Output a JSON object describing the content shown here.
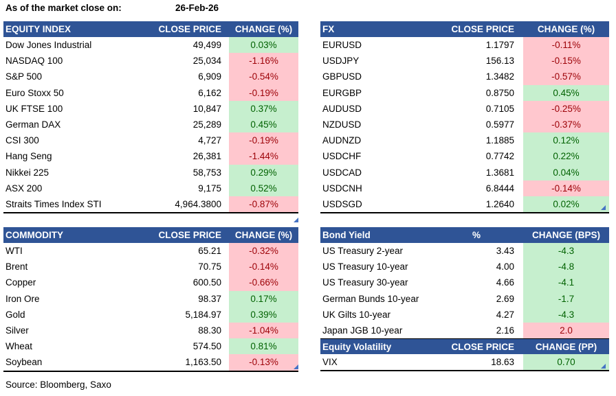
{
  "title_bar": {
    "label": "As of the market close on:",
    "date": "26-Feb-26"
  },
  "footer": {
    "source": "Source: Bloomberg, Saxo"
  },
  "colors": {
    "header_bg": "#2F5496",
    "header_text": "#FFFFFF",
    "positive_bg": "#C6EFCE",
    "positive_text": "#006100",
    "negative_bg": "#FFC7CE",
    "negative_text": "#9C0006",
    "handle": "#4472C4",
    "border": "#000000"
  },
  "tables": {
    "equity": {
      "title": "EQUITY INDEX",
      "col_price": "CLOSE PRICE",
      "col_change": "CHANGE (%)",
      "rows": [
        {
          "name": "Dow Jones Industrial",
          "value": "49,499",
          "change": "0.03%",
          "tone": "green"
        },
        {
          "name": "NASDAQ 100",
          "value": "25,034",
          "change": "-1.16%",
          "tone": "red"
        },
        {
          "name": "S&P 500",
          "value": "6,909",
          "change": "-0.54%",
          "tone": "red"
        },
        {
          "name": "Euro Stoxx 50",
          "value": "6,162",
          "change": "-0.19%",
          "tone": "red"
        },
        {
          "name": "UK FTSE 100",
          "value": "10,847",
          "change": "0.37%",
          "tone": "green"
        },
        {
          "name": "German DAX",
          "value": "25,289",
          "change": "0.45%",
          "tone": "green"
        },
        {
          "name": "CSI 300",
          "value": "4,727",
          "change": "-0.19%",
          "tone": "red"
        },
        {
          "name": "Hang Seng",
          "value": "26,381",
          "change": "-1.44%",
          "tone": "red"
        },
        {
          "name": "Nikkei 225",
          "value": "58,753",
          "change": "0.29%",
          "tone": "green"
        },
        {
          "name": "ASX 200",
          "value": "9,175",
          "change": "0.52%",
          "tone": "green"
        },
        {
          "name": "Straits Times Index STI",
          "value": "4,964.3800",
          "change": "-0.87%",
          "tone": "red"
        }
      ]
    },
    "fx": {
      "title": "FX",
      "col_price": "CLOSE PRICE",
      "col_change": "CHANGE (%)",
      "rows": [
        {
          "name": "EURUSD",
          "value": "1.1797",
          "change": "-0.11%",
          "tone": "red"
        },
        {
          "name": "USDJPY",
          "value": "156.13",
          "change": "-0.15%",
          "tone": "red"
        },
        {
          "name": "GBPUSD",
          "value": "1.3482",
          "change": "-0.57%",
          "tone": "red"
        },
        {
          "name": "EURGBP",
          "value": "0.8750",
          "change": "0.45%",
          "tone": "green"
        },
        {
          "name": "AUDUSD",
          "value": "0.7105",
          "change": "-0.25%",
          "tone": "red"
        },
        {
          "name": "NZDUSD",
          "value": "0.5977",
          "change": "-0.37%",
          "tone": "red"
        },
        {
          "name": "AUDNZD",
          "value": "1.1885",
          "change": "0.12%",
          "tone": "green"
        },
        {
          "name": "USDCHF",
          "value": "0.7742",
          "change": "0.22%",
          "tone": "green"
        },
        {
          "name": "USDCAD",
          "value": "1.3681",
          "change": "0.04%",
          "tone": "green"
        },
        {
          "name": "USDCNH",
          "value": "6.8444",
          "change": "-0.14%",
          "tone": "red"
        },
        {
          "name": "USDSGD",
          "value": "1.2640",
          "change": "0.02%",
          "tone": "green"
        }
      ]
    },
    "commodity": {
      "title": "COMMODITY",
      "col_price": "CLOSE PRICE",
      "col_change": "CHANGE (%)",
      "rows": [
        {
          "name": "WTI",
          "value": "65.21",
          "change": "-0.32%",
          "tone": "red"
        },
        {
          "name": "Brent",
          "value": "70.75",
          "change": "-0.14%",
          "tone": "red"
        },
        {
          "name": "Copper",
          "value": "600.50",
          "change": "-0.66%",
          "tone": "red"
        },
        {
          "name": "Iron Ore",
          "value": "98.37",
          "change": "0.17%",
          "tone": "green"
        },
        {
          "name": "Gold",
          "value": "5,184.97",
          "change": "0.39%",
          "tone": "green"
        },
        {
          "name": "Silver",
          "value": "88.30",
          "change": "-1.04%",
          "tone": "red"
        },
        {
          "name": "Wheat",
          "value": "574.50",
          "change": "0.81%",
          "tone": "green"
        },
        {
          "name": "Soybean",
          "value": "1,163.50",
          "change": "-0.13%",
          "tone": "red"
        }
      ]
    },
    "bond": {
      "title": "Bond Yield",
      "col_price": "%",
      "col_change": "CHANGE (BPS)",
      "rows": [
        {
          "name": "US Treasury 2-year",
          "value": "3.43",
          "change": "-4.3",
          "tone": "green"
        },
        {
          "name": "US Treasury 10-year",
          "value": "4.00",
          "change": "-4.8",
          "tone": "green"
        },
        {
          "name": "US Treasury 30-year",
          "value": "4.66",
          "change": "-4.1",
          "tone": "green"
        },
        {
          "name": "German Bunds 10-year",
          "value": "2.69",
          "change": "-1.7",
          "tone": "green"
        },
        {
          "name": "UK Gilts 10-year",
          "value": "4.27",
          "change": "-4.3",
          "tone": "green"
        },
        {
          "name": "Japan JGB 10-year",
          "value": "2.16",
          "change": "2.0",
          "tone": "red"
        }
      ]
    },
    "volatility": {
      "title": "Equity Volatility",
      "col_price": "CLOSE PRICE",
      "col_change": "CHANGE (PP)",
      "rows": [
        {
          "name": "VIX",
          "value": "18.63",
          "change": "0.70",
          "tone": "green"
        }
      ]
    }
  }
}
